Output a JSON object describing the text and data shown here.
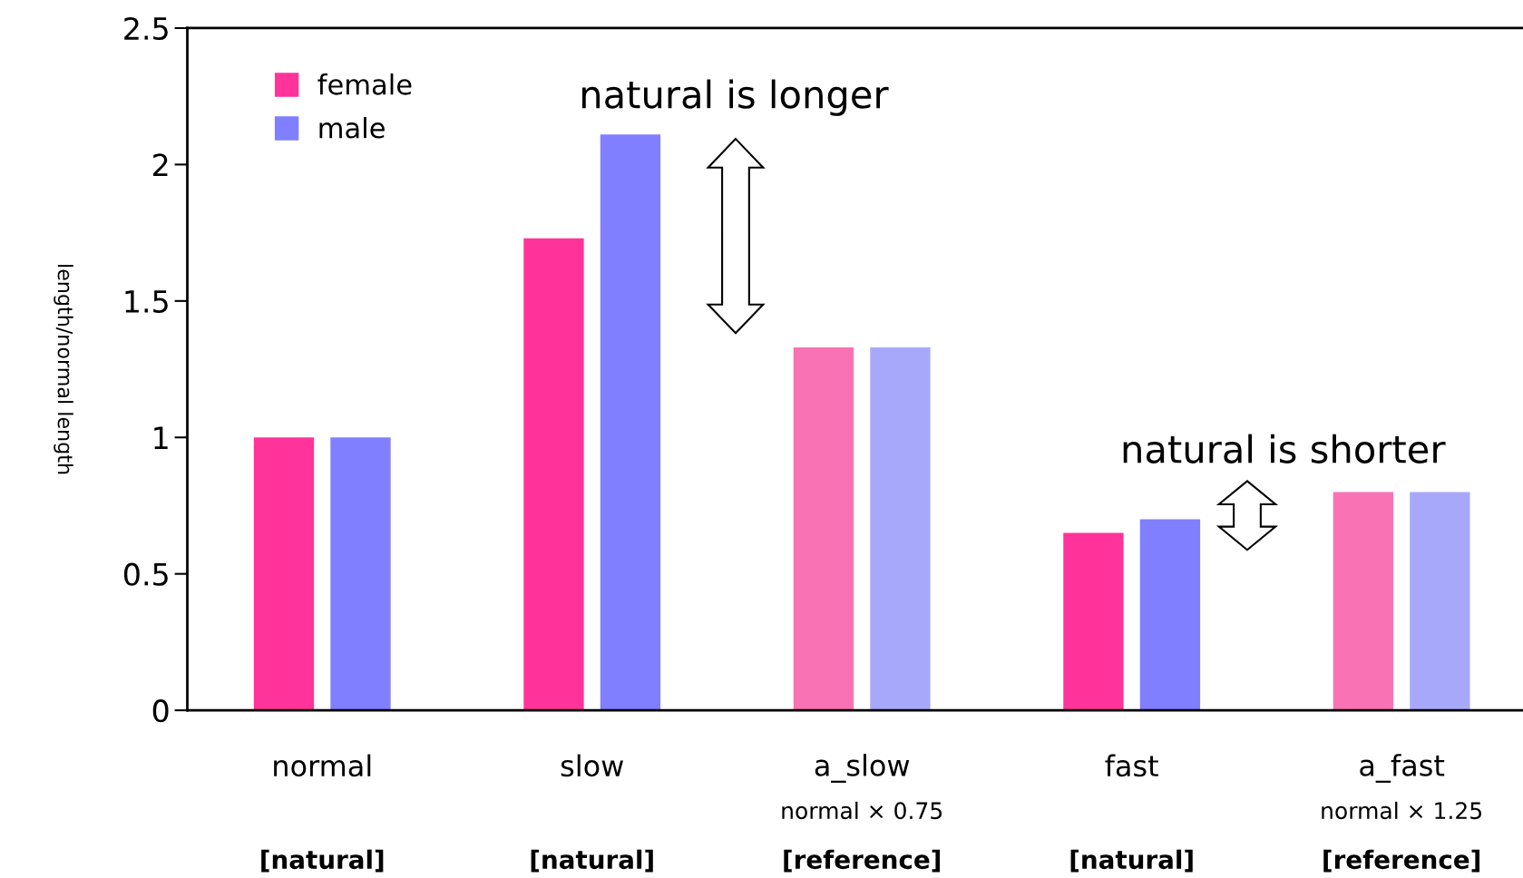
{
  "chart_data": {
    "type": "bar",
    "ylabel": "length/normal length",
    "categories": [
      "normal\n[natural]",
      "slow\n[natural]",
      "a_slow\nnormal × 0.75\n[reference]",
      "fast\n[natural]",
      "a_fast\nnormal × 1.25\n[reference]"
    ],
    "series": [
      {
        "name": "female",
        "color": "#ff3399",
        "colors": [
          "#ff3399",
          "#ff3399",
          "#f872b4",
          "#ff3399",
          "#f872b4"
        ],
        "values": [
          1.0,
          1.73,
          1.33,
          0.65,
          0.8
        ]
      },
      {
        "name": "male",
        "color": "#7f7fff",
        "colors": [
          "#7f7fff",
          "#7f7fff",
          "#a8a8fb",
          "#7f7fff",
          "#a8a8fb"
        ],
        "values": [
          1.0,
          2.11,
          1.33,
          0.7,
          0.8
        ]
      }
    ],
    "ylim": [
      0,
      2.5
    ],
    "yticks": [
      0,
      0.5,
      1,
      1.5,
      2,
      2.5
    ],
    "grid": false,
    "legend": "top left",
    "annotations": [
      "natural is longer",
      "natural is shorter"
    ]
  }
}
